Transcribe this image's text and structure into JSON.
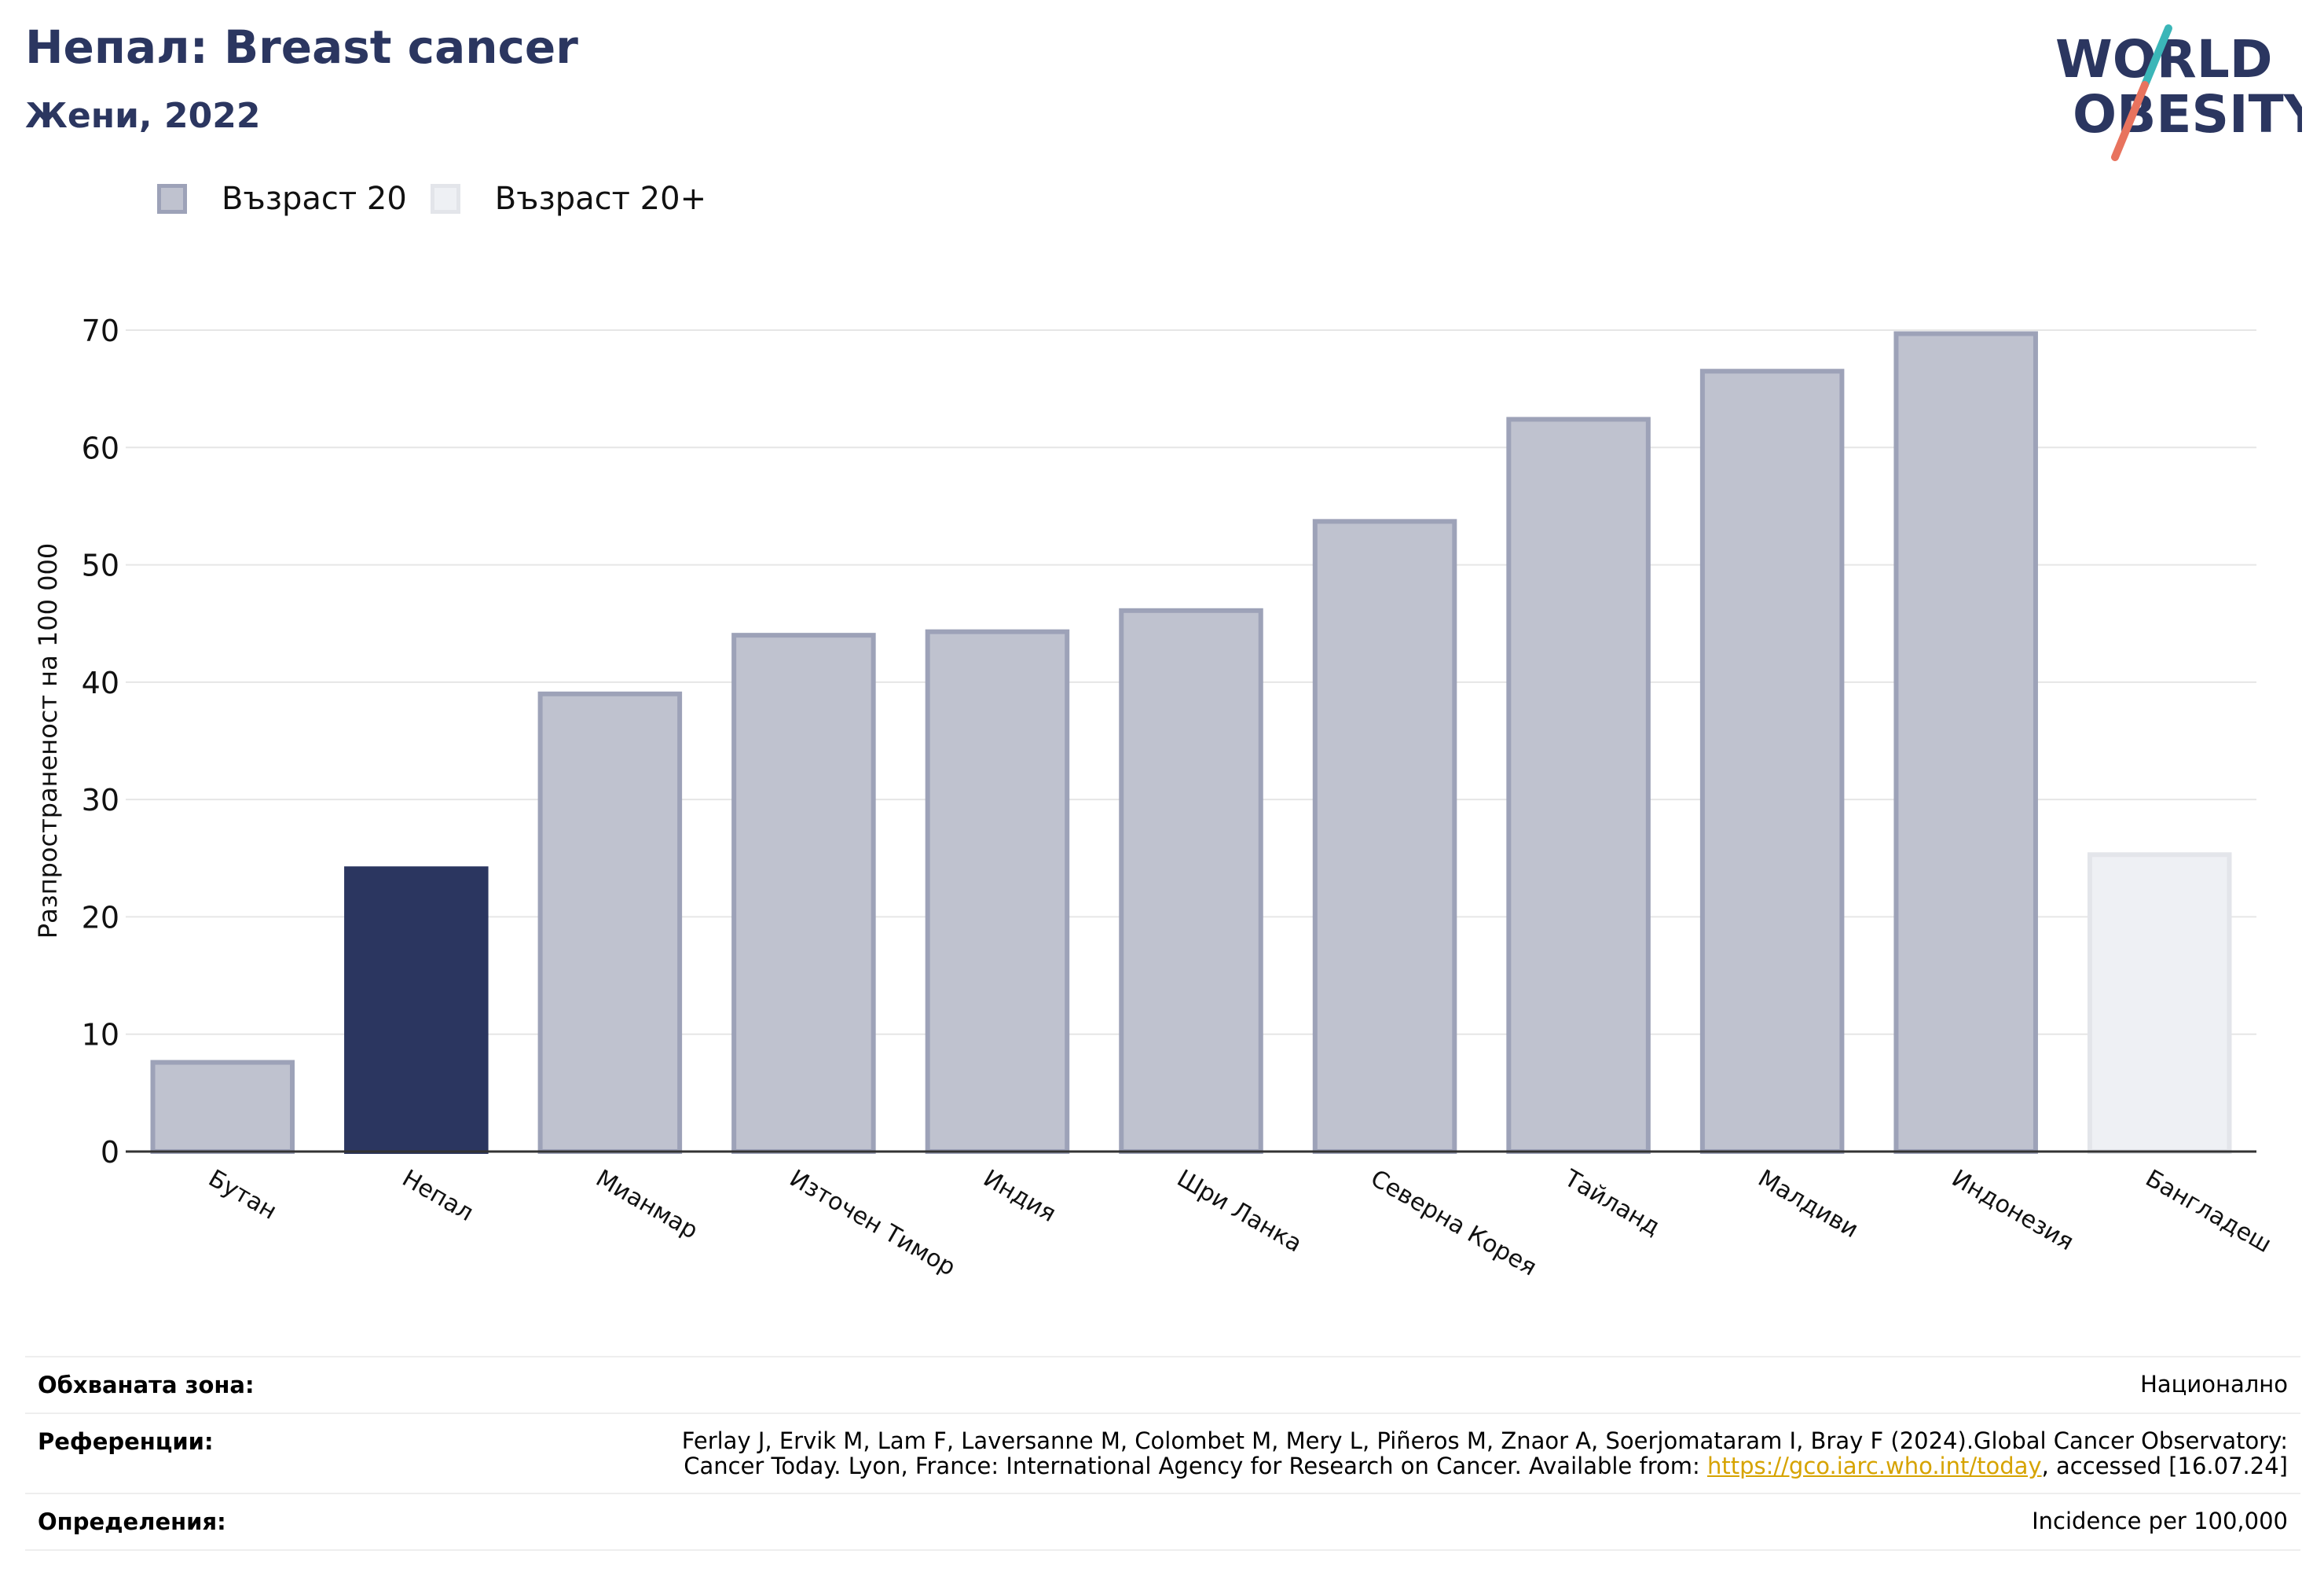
{
  "header": {
    "title": "Непал: Breast cancer",
    "subtitle": "Жени, 2022"
  },
  "logo": {
    "line1": "WORLD",
    "line2": "OBESITY",
    "accent_teal": "#3bb6b8",
    "accent_coral": "#e8735e",
    "navy": "#2b3660"
  },
  "legend": [
    {
      "label": "Възраст 20",
      "color": "#bfc2cf"
    },
    {
      "label": "Възраст 20+",
      "color": "#eef0f4"
    }
  ],
  "chart_data": {
    "type": "bar",
    "ylabel": "Разпространеност  на 100 000",
    "xlabel": "",
    "ylim": [
      0,
      70
    ],
    "yticks": [
      0,
      10,
      20,
      30,
      40,
      50,
      60,
      70
    ],
    "grid": true,
    "legend_position": "top-left",
    "categories": [
      "Бутан",
      "Непал",
      "Мианмар",
      "Източен Тимор",
      "Индия",
      "Шри Ланка",
      "Северна Корея",
      "Тайланд",
      "Малдиви",
      "Индонезия",
      "Бангладеш"
    ],
    "values": [
      7.6,
      24.1,
      39.0,
      44.0,
      44.3,
      46.1,
      53.7,
      62.4,
      66.5,
      69.7,
      25.3
    ],
    "groups": [
      "Възраст 20",
      "highlight",
      "Възраст 20",
      "Възраст 20",
      "Възраст 20",
      "Възраст 20",
      "Възраст 20",
      "Възраст 20",
      "Възраст 20",
      "Възраст 20",
      "Възраст 20+"
    ],
    "colors": {
      "Възраст 20": "#bfc2cf",
      "Възраст 20+": "#eef0f4",
      "highlight": "#2b3660"
    }
  },
  "footer": {
    "coverage_label": "Обхваната зона:",
    "coverage_value": "Национално",
    "references_label": "Референции:",
    "references_line1": "Ferlay J, Ervik M, Lam F, Laversanne M, Colombet M, Mery L, Piñeros M, Znaor A, Soerjomataram I, Bray F (2024).Global Cancer Observatory:",
    "references_line2_pre": "Cancer Today. Lyon, France: International Agency for Research on Cancer. Available from: ",
    "references_link": "https://gco.iarc.who.int/today",
    "references_line2_post": ", accessed [16.07.24]",
    "definitions_label": "Определения:",
    "definitions_value": "Incidence per 100,000"
  }
}
